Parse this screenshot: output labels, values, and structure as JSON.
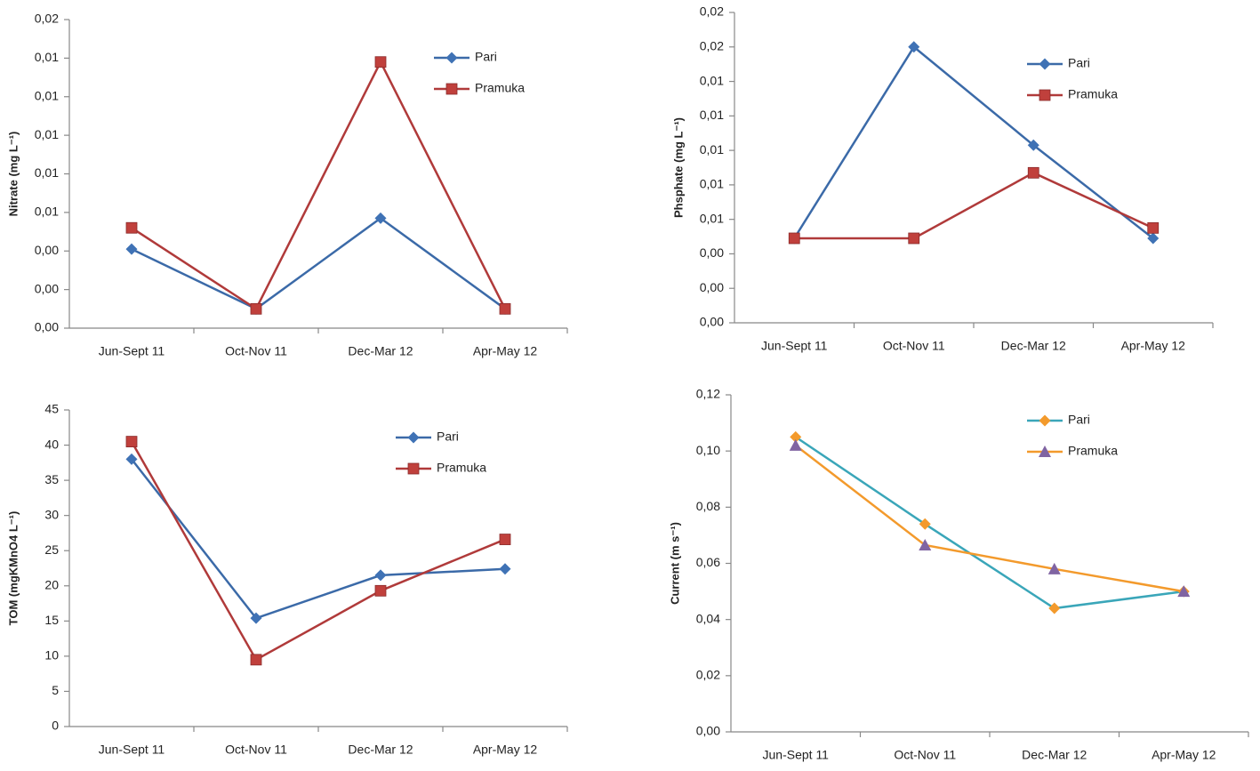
{
  "chart_data": [
    {
      "type": "line",
      "ylabel": "Nitrate (mg L⁻¹)",
      "categories": [
        "Jun-Sept 11",
        "Oct-Nov 11",
        "Dec-Mar 12",
        "Apr-May 12"
      ],
      "series": [
        {
          "name": "Pari",
          "color": "#3b6aa8",
          "marker": "diamond",
          "marker_color": "#3f72b5",
          "values": [
            0.0041,
            0.001,
            0.0057,
            0.001
          ]
        },
        {
          "name": "Pramuka",
          "color": "#b03a3a",
          "marker": "square",
          "marker_color": "#c0403c",
          "values": [
            0.0052,
            0.001,
            0.0138,
            0.001
          ]
        }
      ],
      "ylim": [
        0,
        0.016
      ],
      "yticks": [
        {
          "value": 0,
          "label": "0,00"
        },
        {
          "value": 0.002,
          "label": "0,00"
        },
        {
          "value": 0.004,
          "label": "0,00"
        },
        {
          "value": 0.006,
          "label": "0,01"
        },
        {
          "value": 0.008,
          "label": "0,01"
        },
        {
          "value": 0.01,
          "label": "0,01"
        },
        {
          "value": 0.012,
          "label": "0,01"
        },
        {
          "value": 0.014,
          "label": "0,01"
        },
        {
          "value": 0.016,
          "label": "0,02"
        }
      ],
      "grid": false,
      "legend": "upper right"
    },
    {
      "type": "line",
      "ylabel": "Phsphate (mg L⁻¹)",
      "categories": [
        "Jun-Sept 11",
        "Oct-Nov 11",
        "Dec-Mar 12",
        "Apr-May 12"
      ],
      "series": [
        {
          "name": "Pari",
          "color": "#3b6aa8",
          "marker": "diamond",
          "marker_color": "#3f72b5",
          "values": [
            0.0049,
            0.016,
            0.0103,
            0.0049
          ]
        },
        {
          "name": "Pramuka",
          "color": "#b03a3a",
          "marker": "square",
          "marker_color": "#c0403c",
          "values": [
            0.0049,
            0.0049,
            0.0087,
            0.0055
          ]
        }
      ],
      "ylim": [
        0,
        0.018
      ],
      "yticks": [
        {
          "value": 0,
          "label": "0,00"
        },
        {
          "value": 0.002,
          "label": "0,00"
        },
        {
          "value": 0.004,
          "label": "0,00"
        },
        {
          "value": 0.006,
          "label": "0,01"
        },
        {
          "value": 0.008,
          "label": "0,01"
        },
        {
          "value": 0.01,
          "label": "0,01"
        },
        {
          "value": 0.012,
          "label": "0,01"
        },
        {
          "value": 0.014,
          "label": "0,01"
        },
        {
          "value": 0.016,
          "label": "0,02"
        },
        {
          "value": 0.018,
          "label": "0,02"
        }
      ],
      "grid": false,
      "legend": "upper right"
    },
    {
      "type": "line",
      "ylabel": "TOM (mgKMnO4 L⁻¹)",
      "categories": [
        "Jun-Sept 11",
        "Oct-Nov 11",
        "Dec-Mar 12",
        "Apr-May 12"
      ],
      "series": [
        {
          "name": "Pari",
          "color": "#3b6aa8",
          "marker": "diamond",
          "marker_color": "#3f72b5",
          "values": [
            38,
            15.4,
            21.5,
            22.4
          ]
        },
        {
          "name": "Pramuka",
          "color": "#b03a3a",
          "marker": "square",
          "marker_color": "#c0403c",
          "values": [
            40.5,
            9.5,
            19.3,
            26.6
          ]
        }
      ],
      "ylim": [
        0,
        45
      ],
      "yticks": [
        0,
        5,
        10,
        15,
        20,
        25,
        30,
        35,
        40,
        45
      ],
      "grid": false,
      "legend": "upper right"
    },
    {
      "type": "line",
      "ylabel": "Current (m s⁻¹)",
      "categories": [
        "Jun-Sept 11",
        "Oct-Nov 11",
        "Dec-Mar 12",
        "Apr-May 12"
      ],
      "series": [
        {
          "name": "Pari",
          "color": "#3aa6b9",
          "marker": "diamond",
          "marker_color": "#f39a2c",
          "values": [
            0.105,
            0.074,
            0.044,
            0.05
          ]
        },
        {
          "name": "Pramuka",
          "color": "#f39a2c",
          "marker": "triangle",
          "marker_color": "#8064a2",
          "values": [
            0.102,
            0.0665,
            0.058,
            0.05
          ]
        }
      ],
      "ylim": [
        0,
        0.12
      ],
      "yticks": [
        {
          "value": 0,
          "label": "0,00"
        },
        {
          "value": 0.02,
          "label": "0,02"
        },
        {
          "value": 0.04,
          "label": "0,04"
        },
        {
          "value": 0.06,
          "label": "0,06"
        },
        {
          "value": 0.08,
          "label": "0,08"
        },
        {
          "value": 0.1,
          "label": "0,10"
        },
        {
          "value": 0.12,
          "label": "0,12"
        }
      ],
      "grid": false,
      "legend": "upper right"
    }
  ]
}
